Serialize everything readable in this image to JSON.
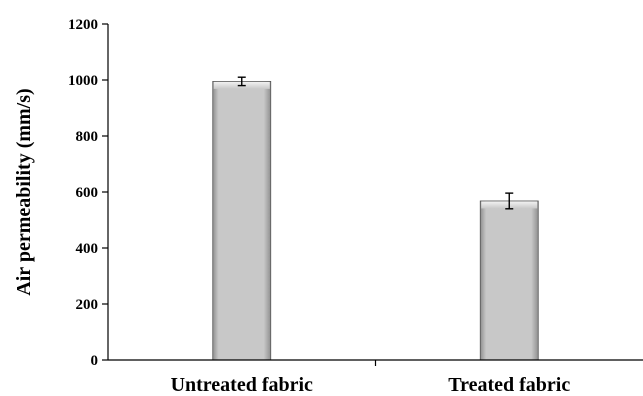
{
  "chart_data": {
    "type": "bar",
    "categories": [
      "Untreated fabric",
      "Treated fabric"
    ],
    "values": [
      995,
      568
    ],
    "errors": [
      15,
      28
    ],
    "title": "",
    "xlabel": "",
    "ylabel": "Air permeability (mm/s)",
    "ylim": [
      0,
      1200
    ],
    "yticks": [
      0,
      200,
      400,
      600,
      800,
      1000,
      1200
    ],
    "grid": false,
    "legend": "none",
    "colors": {
      "bar_fill": "#c8c8c8",
      "bar_highlight": "#f2f2f2",
      "bar_shadow": "#8f8f8f",
      "axis": "#000000"
    }
  }
}
